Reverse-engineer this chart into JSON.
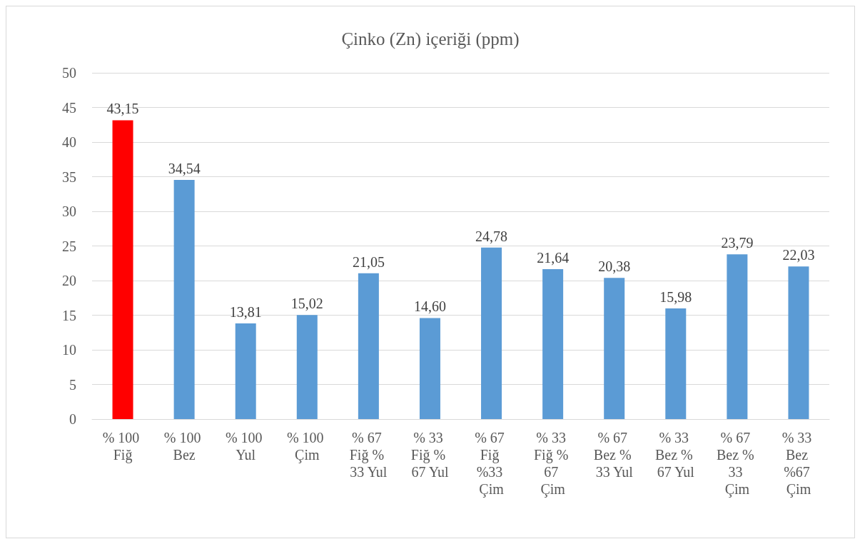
{
  "chart_data": {
    "type": "bar",
    "title": "Çinko (Zn) içeriği (ppm)",
    "categories": [
      "% 100 Fiğ",
      "% 100 Bez",
      "% 100 Yul",
      "% 100 Çim",
      "% 67 Fiğ % 33 Yul",
      "% 33 Fiğ % 67 Yul",
      "% 67 Fiğ %33 Çim",
      "% 33 Fiğ % 67 Çim",
      "% 67 Bez % 33 Yul",
      "% 33 Bez % 67 Yul",
      "% 67 Bez % 33 Çim",
      "% 33 Bez %67 Çim"
    ],
    "values": [
      43.15,
      34.54,
      13.81,
      15.02,
      21.05,
      14.6,
      24.78,
      21.64,
      20.38,
      15.98,
      23.79,
      22.03
    ],
    "value_labels": [
      "43,15",
      "34,54",
      "13,81",
      "15,02",
      "21,05",
      "14,60",
      "24,78",
      "21,64",
      "20,38",
      "15,98",
      "23,79",
      "22,03"
    ],
    "colors": [
      "#ff0000",
      "#5b9bd5",
      "#5b9bd5",
      "#5b9bd5",
      "#5b9bd5",
      "#5b9bd5",
      "#5b9bd5",
      "#5b9bd5",
      "#5b9bd5",
      "#5b9bd5",
      "#5b9bd5",
      "#5b9bd5"
    ],
    "ylim": [
      0,
      50
    ],
    "yticks": [
      0,
      5,
      10,
      15,
      20,
      25,
      30,
      35,
      40,
      45,
      50
    ],
    "grid": "y"
  }
}
